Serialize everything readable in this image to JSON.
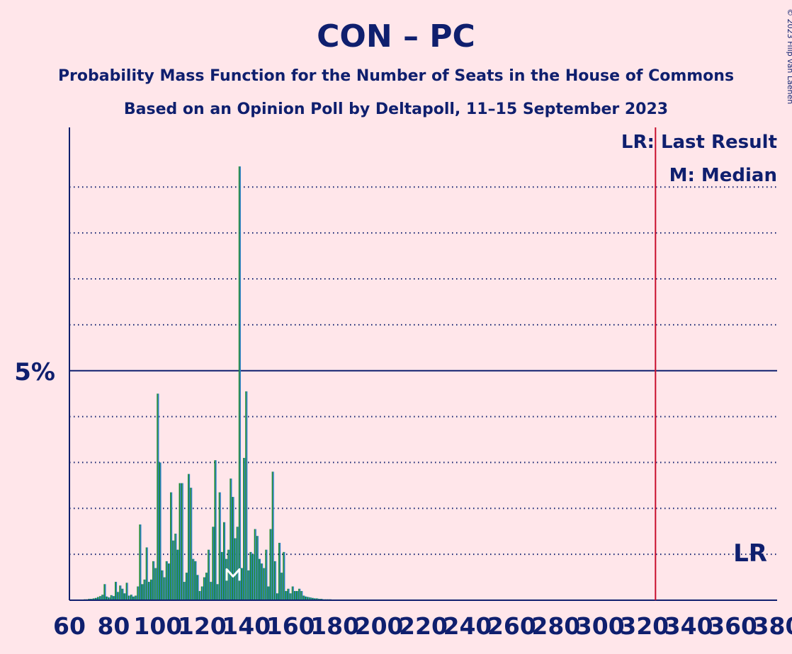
{
  "chart_data": {
    "type": "bar",
    "title": "CON – PC",
    "subtitle": "Probability Mass Function for the Number of Seats in the House of Commons",
    "subtitle2": "Based on an Opinion Poll by Deltapoll, 11–15 September 2023",
    "credit": "© 2023 Filip van Laenen",
    "xlim": [
      60,
      380
    ],
    "ylim": [
      0,
      10.3
    ],
    "x_ticks": [
      60,
      80,
      100,
      120,
      140,
      160,
      180,
      200,
      220,
      240,
      260,
      280,
      300,
      320,
      340,
      360,
      380
    ],
    "x_tick_labels": [
      "60",
      "80",
      "100",
      "120",
      "140",
      "160",
      "180",
      "200",
      "220",
      "240",
      "260",
      "280",
      "300",
      "320",
      "340",
      "360",
      "380"
    ],
    "y_gridlines": [
      1,
      2,
      3,
      4,
      5,
      6,
      7,
      8,
      9
    ],
    "y_labeled": {
      "value": 5,
      "label": "5%"
    },
    "last_result": {
      "seats": 325,
      "label": "LR"
    },
    "median": {
      "seats": 134,
      "marker": "M"
    },
    "legend": [
      "LR: Last Result",
      "M: Median"
    ],
    "colors": {
      "bar_green": "#1a8a2a",
      "bar_blue": "#2a7fc0",
      "last_result_line": "#c8102e",
      "axis": "#0f1f6e"
    },
    "x": [
      66,
      67,
      68,
      69,
      70,
      71,
      72,
      73,
      74,
      75,
      76,
      77,
      78,
      79,
      80,
      81,
      82,
      83,
      84,
      85,
      86,
      87,
      88,
      89,
      90,
      91,
      92,
      93,
      94,
      95,
      96,
      97,
      98,
      99,
      100,
      101,
      102,
      103,
      104,
      105,
      106,
      107,
      108,
      109,
      110,
      111,
      112,
      113,
      114,
      115,
      116,
      117,
      118,
      119,
      120,
      121,
      122,
      123,
      124,
      125,
      126,
      127,
      128,
      129,
      130,
      131,
      132,
      133,
      134,
      135,
      136,
      137,
      138,
      139,
      140,
      141,
      142,
      143,
      144,
      145,
      146,
      147,
      148,
      149,
      150,
      151,
      152,
      153,
      154,
      155,
      156,
      157,
      158,
      159,
      160,
      161,
      162,
      163,
      164,
      165,
      166,
      167,
      168,
      169,
      170,
      171,
      172,
      173,
      174,
      175,
      176,
      177,
      178
    ],
    "values": [
      0.01,
      0.02,
      0.02,
      0.03,
      0.03,
      0.04,
      0.05,
      0.07,
      0.09,
      0.12,
      0.35,
      0.08,
      0.06,
      0.11,
      0.09,
      0.4,
      0.18,
      0.32,
      0.25,
      0.15,
      0.38,
      0.1,
      0.12,
      0.08,
      0.1,
      0.3,
      1.65,
      0.35,
      0.45,
      1.15,
      0.4,
      0.45,
      0.85,
      0.7,
      4.5,
      3.0,
      0.65,
      0.5,
      0.85,
      0.8,
      2.35,
      1.3,
      1.45,
      1.1,
      2.55,
      2.55,
      0.4,
      0.6,
      2.75,
      2.45,
      0.9,
      0.85,
      0.55,
      0.2,
      0.3,
      0.5,
      0.6,
      1.1,
      0.4,
      1.6,
      3.05,
      0.35,
      2.35,
      1.05,
      1.7,
      0.9,
      1.1,
      2.65,
      2.25,
      1.35,
      1.6,
      9.45,
      0.7,
      3.1,
      4.55,
      0.65,
      1.05,
      1.0,
      1.55,
      1.4,
      0.9,
      0.8,
      0.7,
      1.1,
      0.3,
      1.55,
      2.8,
      0.85,
      0.15,
      1.25,
      0.6,
      1.05,
      0.2,
      0.25,
      0.15,
      0.3,
      0.2,
      0.2,
      0.25,
      0.2,
      0.1,
      0.08,
      0.07,
      0.06,
      0.05,
      0.04,
      0.04,
      0.03,
      0.03,
      0.02,
      0.02,
      0.02,
      0.02
    ]
  }
}
